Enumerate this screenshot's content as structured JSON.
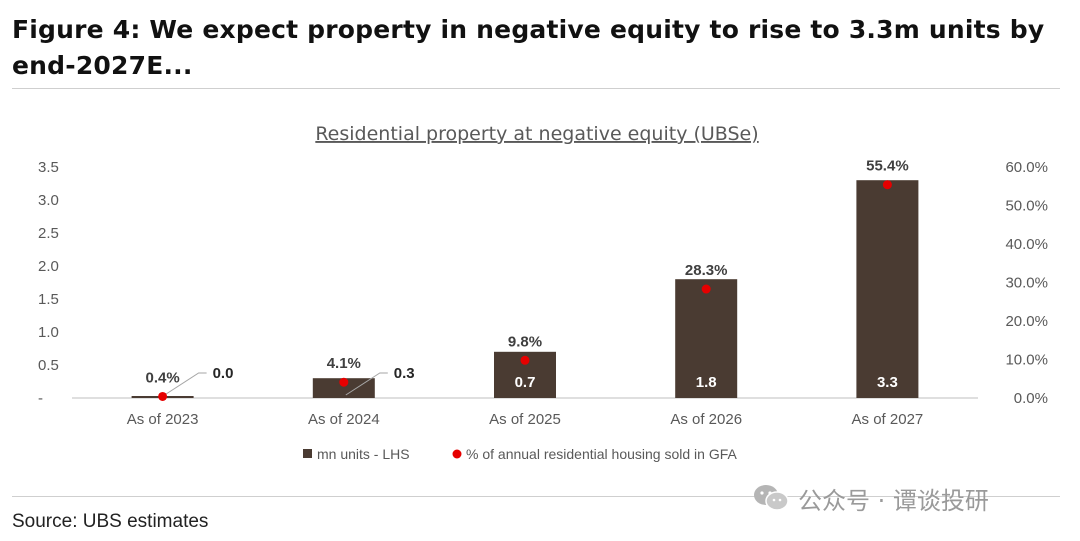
{
  "figure": {
    "title": "Figure 4: We expect property in negative equity to rise to 3.3m units by end-2027E...",
    "source": "Source: UBS estimates"
  },
  "watermark": {
    "text": "公众号 · 谭谈投研",
    "icon": "wechat-icon"
  },
  "colors": {
    "bar": "#4a3b32",
    "dot": "#e60000",
    "axis_text": "#595959",
    "rule": "#cfcfcf"
  },
  "chart_data": {
    "type": "bar",
    "title": "Residential property at negative equity (UBSe)",
    "categories": [
      "As of 2023",
      "As of 2024",
      "As of 2025",
      "As of 2026",
      "As of 2027"
    ],
    "series": [
      {
        "name": "mn units - LHS",
        "kind": "bar",
        "axis": "left",
        "values": [
          0.03,
          0.3,
          0.7,
          1.8,
          3.3
        ],
        "labels": [
          "0.0",
          "0.3",
          "0.7",
          "1.8",
          "3.3"
        ]
      },
      {
        "name": "% of annual residential housing sold in GFA",
        "kind": "scatter",
        "axis": "right",
        "values": [
          0.4,
          4.1,
          9.8,
          28.3,
          55.4
        ],
        "labels": [
          "0.4%",
          "4.1%",
          "9.8%",
          "28.3%",
          "55.4%"
        ]
      }
    ],
    "y_left": {
      "min": 0,
      "max": 3.5,
      "ticks": [
        0,
        0.5,
        1.0,
        1.5,
        2.0,
        2.5,
        3.0,
        3.5
      ],
      "tick_labels": [
        "-",
        "0.5",
        "1.0",
        "1.5",
        "2.0",
        "2.5",
        "3.0",
        "3.5"
      ]
    },
    "y_right": {
      "min": 0,
      "max": 60,
      "ticks": [
        0,
        10,
        20,
        30,
        40,
        50,
        60
      ],
      "tick_labels": [
        "0.0%",
        "10.0%",
        "20.0%",
        "30.0%",
        "40.0%",
        "50.0%",
        "60.0%"
      ]
    },
    "grid": false,
    "legend": {
      "position": "bottom"
    }
  }
}
